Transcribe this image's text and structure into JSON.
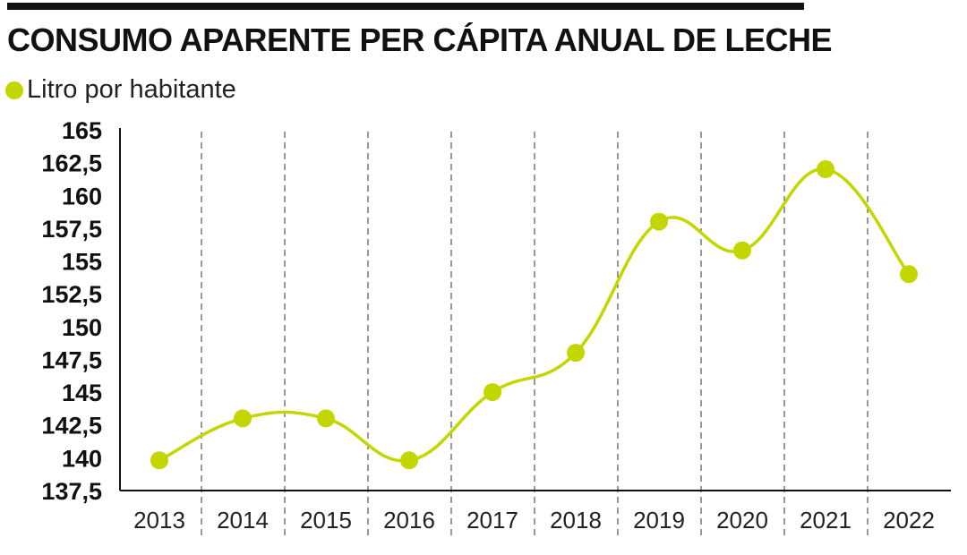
{
  "header": {
    "title": "CONSUMO APARENTE PER CÁPITA ANUAL DE LECHE"
  },
  "chart_data": {
    "type": "line",
    "title": "CONSUMO APARENTE PER CÁPITA ANUAL DE LECHE",
    "categories": [
      "2013",
      "2014",
      "2015",
      "2016",
      "2017",
      "2018",
      "2019",
      "2020",
      "2021",
      "2022"
    ],
    "series": [
      {
        "name": "Litro por habitante",
        "values": [
          139.8,
          143.0,
          143.0,
          139.8,
          145.0,
          148.0,
          158.0,
          155.8,
          162.0,
          154.0
        ]
      }
    ],
    "yticks": [
      "165",
      "162,5",
      "160",
      "157,5",
      "155",
      "152,5",
      "150",
      "147,5",
      "145",
      "142,5",
      "140",
      "137,5"
    ],
    "ylim": [
      137.5,
      165
    ],
    "xlabel": "",
    "ylabel": "",
    "grid": "vertical dashed",
    "legend": "top-left",
    "colors": {
      "series": "#c3d600",
      "rule": "#111111",
      "grid": "#333333"
    }
  }
}
